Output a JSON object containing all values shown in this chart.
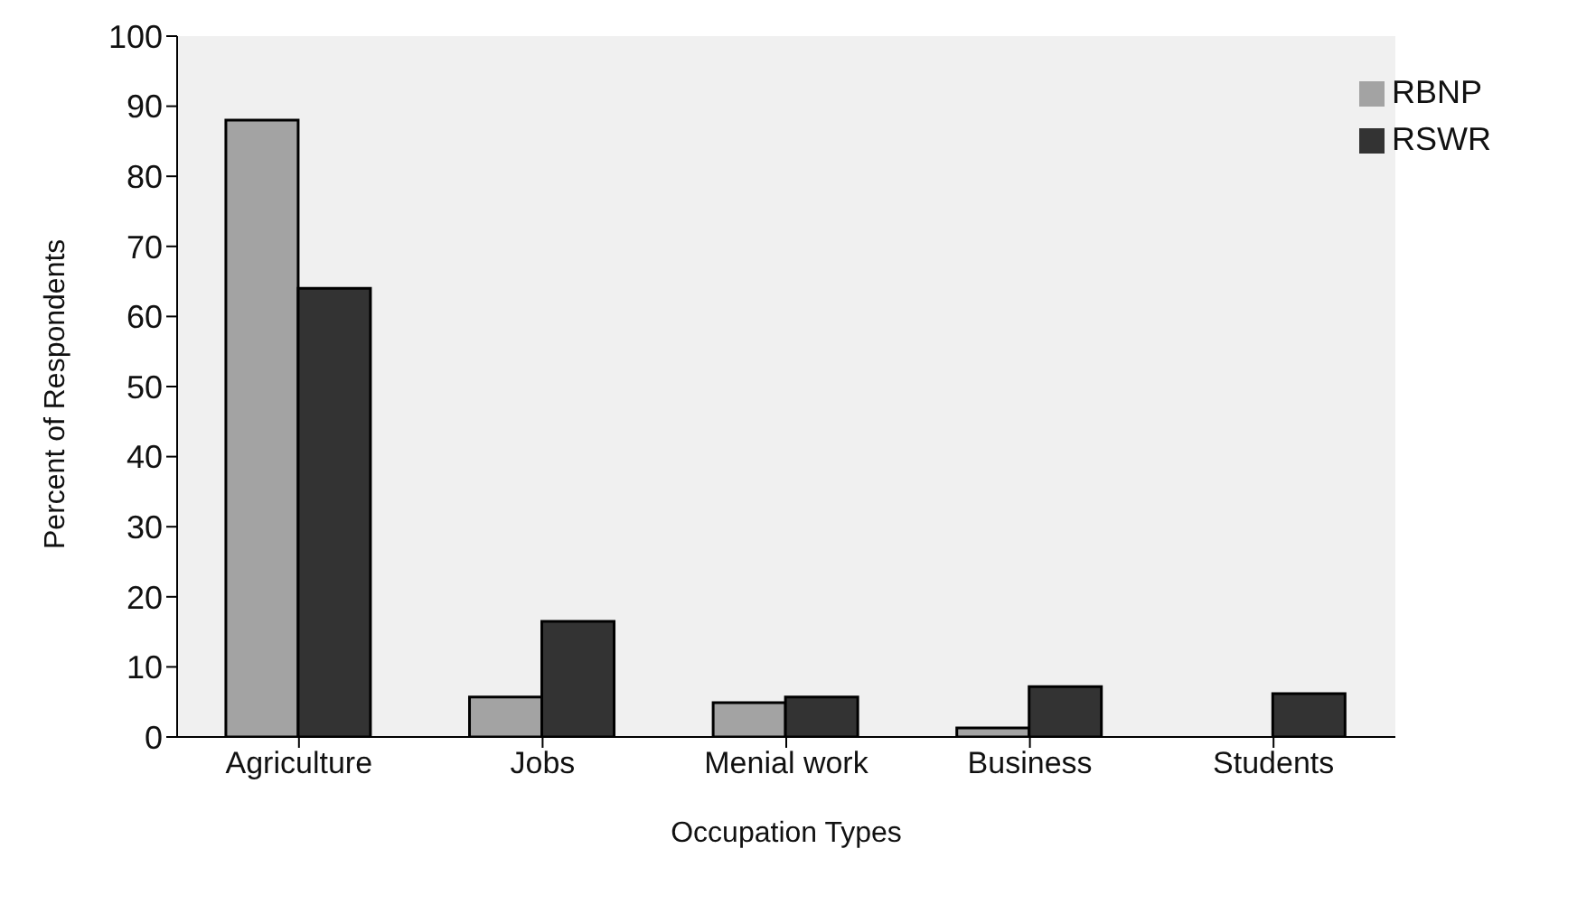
{
  "chart_data": {
    "type": "bar",
    "xlabel": "Occupation Types",
    "ylabel": "Percent of Respondents",
    "categories": [
      "Agriculture",
      "Jobs",
      "Menial work",
      "Business",
      "Students"
    ],
    "series": [
      {
        "name": "RBNP",
        "color": "#a3a3a3",
        "values": [
          88,
          5.7,
          4.9,
          1.3,
          0
        ]
      },
      {
        "name": "RSWR",
        "color": "#333333",
        "values": [
          64,
          16.5,
          5.7,
          7.2,
          6.2
        ]
      }
    ],
    "ylim": [
      0,
      100
    ],
    "yticks": [
      0,
      10,
      20,
      30,
      40,
      50,
      60,
      70,
      80,
      90,
      100
    ],
    "grid": false,
    "legend": "top right"
  }
}
